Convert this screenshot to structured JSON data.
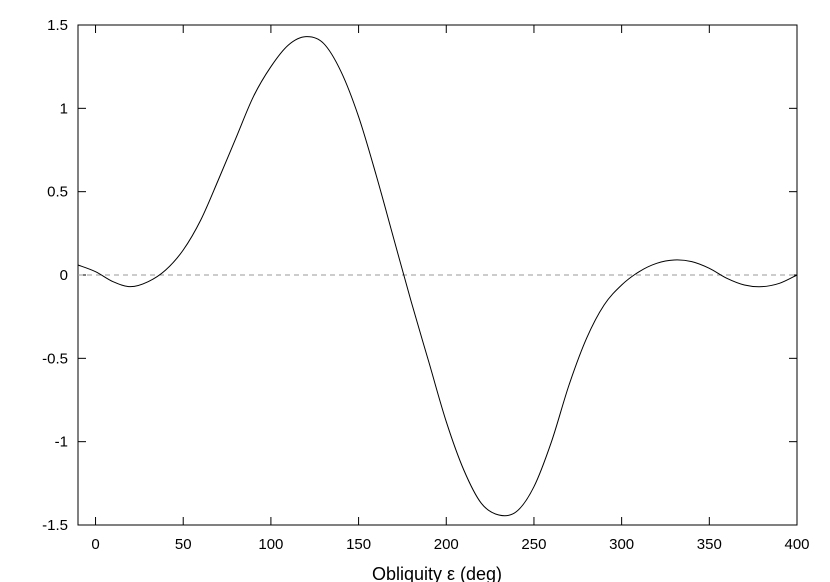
{
  "chart_data": {
    "type": "line",
    "title": "",
    "xlabel": "Obliquity ε (deg)",
    "ylabel": "",
    "xlim": [
      -10,
      400
    ],
    "ylim": [
      -1.5,
      1.5
    ],
    "x_ticks": [
      0,
      50,
      100,
      150,
      200,
      250,
      300,
      350,
      400
    ],
    "x_tick_labels": [
      "0",
      "50",
      "100",
      "150",
      "200",
      "250",
      "300",
      "350",
      "400"
    ],
    "y_ticks": [
      -1.5,
      -1,
      -0.5,
      0,
      0.5,
      1,
      1.5
    ],
    "y_tick_labels": [
      "-1.5",
      "-1",
      "-0.5",
      "0",
      "0.5",
      "1",
      "1.5"
    ],
    "grid": false,
    "legend": "none",
    "reference_line": {
      "y": 0,
      "style": "dashed",
      "color": "#9a9a9a"
    },
    "line_color": "#000000",
    "series": [
      {
        "x": [
          -10,
          0,
          10,
          20,
          30,
          40,
          50,
          60,
          70,
          80,
          90,
          100,
          110,
          120,
          130,
          140,
          150,
          160,
          170,
          180,
          190,
          200,
          210,
          220,
          230,
          240,
          250,
          260,
          270,
          280,
          290,
          300,
          310,
          320,
          330,
          340,
          350,
          360,
          370,
          380,
          390,
          400
        ],
        "values": [
          0.06,
          0.02,
          -0.04,
          -0.07,
          -0.04,
          0.03,
          0.15,
          0.33,
          0.57,
          0.82,
          1.07,
          1.25,
          1.38,
          1.43,
          1.39,
          1.22,
          0.95,
          0.6,
          0.22,
          -0.16,
          -0.52,
          -0.88,
          -1.17,
          -1.37,
          -1.44,
          -1.42,
          -1.27,
          -1.0,
          -0.66,
          -0.38,
          -0.18,
          -0.06,
          0.02,
          0.07,
          0.09,
          0.08,
          0.04,
          -0.02,
          -0.06,
          -0.07,
          -0.05,
          0.0
        ]
      }
    ]
  }
}
